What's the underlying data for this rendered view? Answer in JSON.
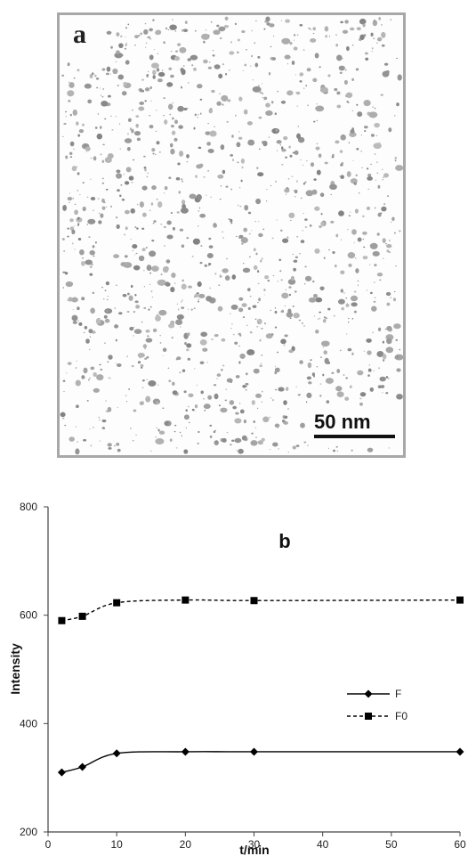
{
  "panel_a": {
    "label": "a",
    "scale_bar_label": "50 nm"
  },
  "chart_data": {
    "type": "line",
    "panel_label": "b",
    "title": "",
    "xlabel": "t/min",
    "ylabel": "Intensity",
    "xlim": [
      0,
      60
    ],
    "ylim": [
      200,
      800
    ],
    "x_ticks": [
      0,
      10,
      20,
      30,
      40,
      50,
      60
    ],
    "y_ticks": [
      200,
      400,
      600,
      800
    ],
    "grid": false,
    "legend_position": "right",
    "x": [
      2,
      5,
      10,
      20,
      30,
      60
    ],
    "series": [
      {
        "name": "F",
        "values": [
          310,
          320,
          345,
          348,
          348,
          348
        ],
        "marker": "diamond",
        "line_style": "solid",
        "color": "#000000"
      },
      {
        "name": "F0",
        "values": [
          590,
          598,
          623,
          628,
          627,
          628
        ],
        "marker": "square",
        "line_style": "dashed",
        "color": "#000000"
      }
    ]
  }
}
